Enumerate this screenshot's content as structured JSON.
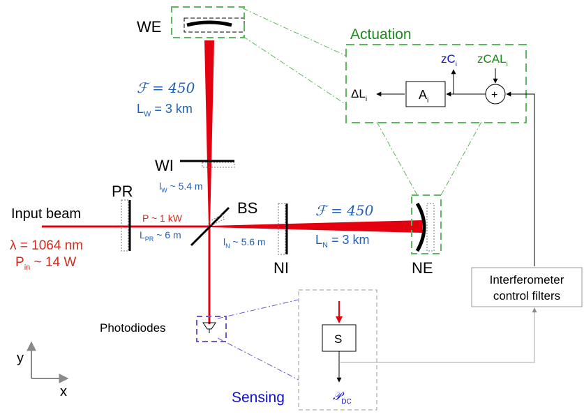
{
  "mirrors": {
    "we": "WE",
    "wi": "WI",
    "pr": "PR",
    "bs": "BS",
    "ni": "NI",
    "ne": "NE"
  },
  "west_arm": {
    "finesse": "ℱ = 450",
    "length_prefix": "L",
    "length_sub": "W",
    "length_value": " = 3 km",
    "lw_prefix": "l",
    "lw_sub": "W",
    "lw_value": " ~ 5.4 m"
  },
  "north_arm": {
    "finesse": "ℱ = 450",
    "length_prefix": "L",
    "length_sub": "N",
    "length_value": " = 3 km",
    "ln_prefix": "l",
    "ln_sub": "N",
    "ln_value": " ~ 5.6 m"
  },
  "input": {
    "label": "Input beam",
    "wavelength": "λ = 1064 nm",
    "power_prefix": "P",
    "power_sub": "in",
    "power_value": " ~ 14 W"
  },
  "recycling": {
    "power": "P ~ 1 kW",
    "length_prefix": "L",
    "length_sub": "PR",
    "length_value": " ~ 6 m"
  },
  "actuation": {
    "title": "Actuation",
    "block_prefix": "A",
    "block_sub": "i",
    "sum_symbol": "+",
    "output_prefix": "ΔL",
    "output_sub": "i",
    "zc_prefix": "zC",
    "zc_sub": "i",
    "zcal_prefix": "zCAL",
    "zcal_sub": "i"
  },
  "sensing": {
    "title": "Sensing",
    "block": "S",
    "output_prefix": "𝒫",
    "output_sub": "DC"
  },
  "photodiodes": "Photodiodes",
  "control": {
    "line1": "Interferometer",
    "line2": "control filters"
  },
  "axes": {
    "y": "y",
    "x": "x"
  },
  "colors": {
    "beam": "#e3000f",
    "label_red": "#d42a1e",
    "label_blue": "#1f5fb8",
    "actuation_green": "#1a8a1a",
    "dash_green": "#5cb85c",
    "sensing_blue": "#1010d0",
    "dash_blue": "#6a5acd",
    "gray": "#9a9a9a"
  }
}
